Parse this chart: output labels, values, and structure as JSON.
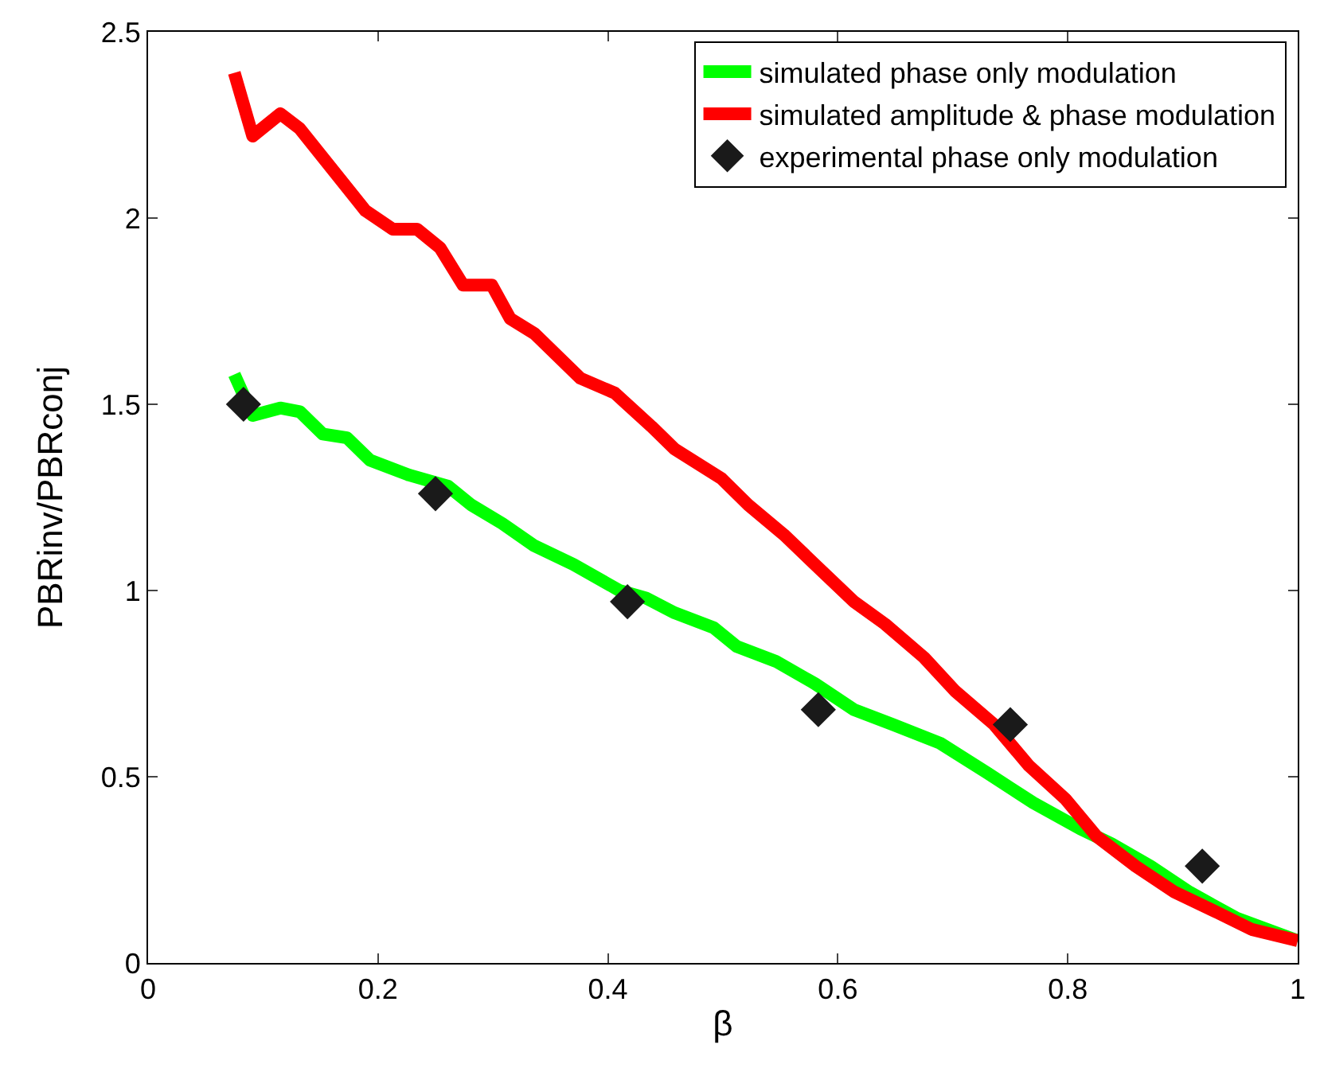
{
  "chart_data": {
    "type": "line",
    "xlabel": "β",
    "ylabel": "PBRinv/PBRconj",
    "xlim": [
      0,
      1
    ],
    "ylim": [
      0,
      2.5
    ],
    "xticks": [
      0,
      0.2,
      0.4,
      0.6,
      0.8,
      1
    ],
    "yticks": [
      0,
      0.5,
      1,
      1.5,
      2,
      2.5
    ],
    "grid": false,
    "legend": "top right",
    "series": [
      {
        "name": "simulated phase only modulation",
        "color": "#00ff00",
        "x": [
          0.075,
          0.091,
          0.115,
          0.132,
          0.152,
          0.173,
          0.193,
          0.227,
          0.261,
          0.281,
          0.308,
          0.336,
          0.37,
          0.41,
          0.433,
          0.458,
          0.492,
          0.512,
          0.546,
          0.58,
          0.614,
          0.648,
          0.689,
          0.73,
          0.77,
          0.811,
          0.838,
          0.872,
          0.906,
          0.947,
          1.0
        ],
        "values": [
          1.58,
          1.47,
          1.49,
          1.48,
          1.42,
          1.41,
          1.35,
          1.31,
          1.28,
          1.23,
          1.18,
          1.12,
          1.07,
          1.0,
          0.98,
          0.94,
          0.9,
          0.85,
          0.81,
          0.75,
          0.68,
          0.64,
          0.59,
          0.51,
          0.43,
          0.36,
          0.32,
          0.26,
          0.19,
          0.12,
          0.06
        ]
      },
      {
        "name": "simulated amplitude & phase modulation",
        "color": "#ff0000",
        "x": [
          0.075,
          0.091,
          0.115,
          0.132,
          0.189,
          0.213,
          0.234,
          0.254,
          0.274,
          0.299,
          0.315,
          0.336,
          0.376,
          0.406,
          0.438,
          0.458,
          0.499,
          0.522,
          0.553,
          0.58,
          0.614,
          0.641,
          0.675,
          0.702,
          0.736,
          0.766,
          0.798,
          0.825,
          0.859,
          0.893,
          0.927,
          0.96,
          1.0
        ],
        "values": [
          2.39,
          2.22,
          2.28,
          2.24,
          2.02,
          1.97,
          1.97,
          1.92,
          1.82,
          1.82,
          1.73,
          1.69,
          1.57,
          1.53,
          1.44,
          1.38,
          1.3,
          1.23,
          1.15,
          1.07,
          0.97,
          0.91,
          0.82,
          0.73,
          0.64,
          0.53,
          0.44,
          0.34,
          0.26,
          0.19,
          0.14,
          0.09,
          0.06
        ]
      },
      {
        "name": "experimental phase only modulation",
        "type": "scatter",
        "marker": "diamond",
        "color": "#1a1a1a",
        "x": [
          0.083,
          0.25,
          0.417,
          0.583,
          0.75,
          0.917
        ],
        "values": [
          1.5,
          1.26,
          0.97,
          0.68,
          0.64,
          0.26
        ]
      }
    ]
  }
}
